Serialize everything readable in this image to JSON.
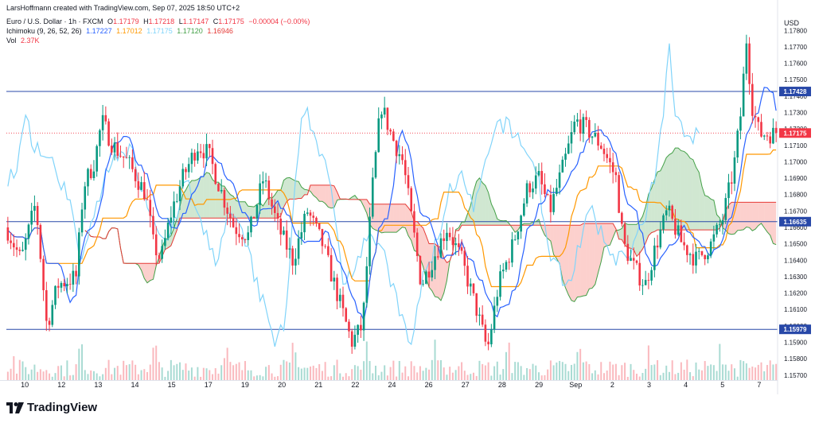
{
  "credit": "LarsHoffmann created with TradingView.com, Sep 07, 2025 18:50 UTC+2",
  "legend": {
    "symbol": "Euro / U.S. Dollar · 1h · FXCM",
    "open_label": "O",
    "open": "1.17179",
    "high_label": "H",
    "high": "1.17218",
    "low_label": "L",
    "low": "1.17147",
    "close_label": "C",
    "close": "1.17175",
    "change": "−0.00004 (−0.00%)",
    "ichimoku_label": "Ichimoku (9, 26, 52, 26)",
    "ichimoku_values": [
      "1.17227",
      "1.17012",
      "1.17175",
      "1.17120",
      "1.16946"
    ],
    "vol_label": "Vol",
    "vol_value": "2.37K"
  },
  "colors": {
    "up": "#089981",
    "down": "#f23645",
    "conversion": "#2962ff",
    "base": "#ff9800",
    "lagging": "#81d4fa",
    "leadA": "#43a047",
    "leadB": "#e53935",
    "cloud_up": "rgba(67,160,71,0.25)",
    "cloud_down": "rgba(244,67,54,0.25)",
    "hline": "#2848a8",
    "last": "#f23645"
  },
  "brand": "TradingView",
  "chart_data": {
    "type": "candlestick",
    "symbol": "EURUSD",
    "timeframe": "1h",
    "y_axis": {
      "currency": "USD",
      "min": 1.1567,
      "max": 1.1784,
      "ticks": [
        1.157,
        1.158,
        1.159,
        1.16,
        1.161,
        1.162,
        1.163,
        1.164,
        1.165,
        1.166,
        1.167,
        1.168,
        1.169,
        1.17,
        1.171,
        1.172,
        1.173,
        1.174,
        1.175,
        1.176,
        1.177,
        1.178
      ]
    },
    "x_axis": {
      "labels": [
        "10",
        "12",
        "13",
        "14",
        "15",
        "17",
        "19",
        "20",
        "21",
        "22",
        "24",
        "26",
        "27",
        "28",
        "29",
        "Sep",
        "2",
        "3",
        "4",
        "5",
        "7"
      ],
      "label_days": [
        0.5,
        1.5,
        2.5,
        3.5,
        4.5,
        5.5,
        6.5,
        7.5,
        8.5,
        9.5,
        10.5,
        11.5,
        12.5,
        13.5,
        14.5,
        15.5,
        16.5,
        17.5,
        18.5,
        19.5,
        20.5
      ],
      "days": 21
    },
    "horizontal_lines": [
      {
        "value": 1.17428,
        "label": "1.17428"
      },
      {
        "value": 1.16635,
        "label": "1.16635"
      },
      {
        "value": 1.15979,
        "label": "1.15979"
      }
    ],
    "last_price": {
      "value": 1.17175,
      "label": "1.17175"
    },
    "price_path": [
      {
        "d": 0.0,
        "p": 1.166
      },
      {
        "d": 0.4,
        "p": 1.164
      },
      {
        "d": 0.8,
        "p": 1.1675
      },
      {
        "d": 1.1,
        "p": 1.16
      },
      {
        "d": 1.4,
        "p": 1.1625
      },
      {
        "d": 1.9,
        "p": 1.163
      },
      {
        "d": 2.1,
        "p": 1.1685
      },
      {
        "d": 2.4,
        "p": 1.17
      },
      {
        "d": 2.6,
        "p": 1.1725
      },
      {
        "d": 2.9,
        "p": 1.171
      },
      {
        "d": 3.3,
        "p": 1.17
      },
      {
        "d": 3.8,
        "p": 1.168
      },
      {
        "d": 4.0,
        "p": 1.165
      },
      {
        "d": 4.2,
        "p": 1.164
      },
      {
        "d": 4.5,
        "p": 1.167
      },
      {
        "d": 4.8,
        "p": 1.169
      },
      {
        "d": 5.2,
        "p": 1.171
      },
      {
        "d": 5.5,
        "p": 1.1705
      },
      {
        "d": 5.8,
        "p": 1.1685
      },
      {
        "d": 6.2,
        "p": 1.166
      },
      {
        "d": 6.6,
        "p": 1.1655
      },
      {
        "d": 7.0,
        "p": 1.169
      },
      {
        "d": 7.4,
        "p": 1.166
      },
      {
        "d": 7.8,
        "p": 1.164
      },
      {
        "d": 8.2,
        "p": 1.167
      },
      {
        "d": 8.6,
        "p": 1.165
      },
      {
        "d": 9.0,
        "p": 1.162
      },
      {
        "d": 9.4,
        "p": 1.159
      },
      {
        "d": 9.7,
        "p": 1.16
      },
      {
        "d": 9.95,
        "p": 1.168
      },
      {
        "d": 10.2,
        "p": 1.1735
      },
      {
        "d": 10.5,
        "p": 1.1715
      },
      {
        "d": 10.8,
        "p": 1.17
      },
      {
        "d": 11.0,
        "p": 1.167
      },
      {
        "d": 11.3,
        "p": 1.1625
      },
      {
        "d": 11.6,
        "p": 1.164
      },
      {
        "d": 12.0,
        "p": 1.166
      },
      {
        "d": 12.4,
        "p": 1.164
      },
      {
        "d": 12.8,
        "p": 1.161
      },
      {
        "d": 13.1,
        "p": 1.1585
      },
      {
        "d": 13.4,
        "p": 1.1625
      },
      {
        "d": 13.8,
        "p": 1.165
      },
      {
        "d": 14.2,
        "p": 1.1685
      },
      {
        "d": 14.5,
        "p": 1.169
      },
      {
        "d": 14.8,
        "p": 1.167
      },
      {
        "d": 15.2,
        "p": 1.17
      },
      {
        "d": 15.5,
        "p": 1.1725
      },
      {
        "d": 15.8,
        "p": 1.172
      },
      {
        "d": 16.2,
        "p": 1.171
      },
      {
        "d": 16.6,
        "p": 1.169
      },
      {
        "d": 16.8,
        "p": 1.165
      },
      {
        "d": 17.1,
        "p": 1.1635
      },
      {
        "d": 17.4,
        "p": 1.1625
      },
      {
        "d": 17.7,
        "p": 1.165
      },
      {
        "d": 18.0,
        "p": 1.167
      },
      {
        "d": 18.4,
        "p": 1.165
      },
      {
        "d": 18.8,
        "p": 1.164
      },
      {
        "d": 19.2,
        "p": 1.165
      },
      {
        "d": 19.5,
        "p": 1.1665
      },
      {
        "d": 19.8,
        "p": 1.1695
      },
      {
        "d": 20.0,
        "p": 1.173
      },
      {
        "d": 20.15,
        "p": 1.1775
      },
      {
        "d": 20.3,
        "p": 1.1735
      },
      {
        "d": 20.5,
        "p": 1.1717
      }
    ],
    "volume": {
      "max": 5.0,
      "unit": "K"
    }
  }
}
